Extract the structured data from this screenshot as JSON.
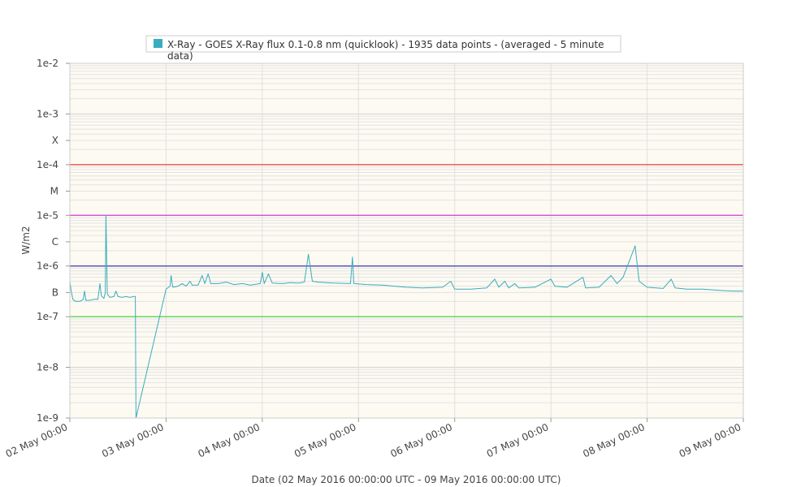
{
  "chart_data": {
    "type": "line",
    "title": "",
    "xlabel": "Date (02 May 2016 00:00:00 UTC - 09 May 2016 00:00:00 UTC)",
    "ylabel": "W/m2",
    "y_scale": "log",
    "ylim": [
      1e-09,
      0.01
    ],
    "xlim": [
      "2016-05-02 00:00",
      "2016-05-09 00:00"
    ],
    "grid": true,
    "legend_placement": "top",
    "y_ticks": [
      {
        "value": 1e-09,
        "label": "1e-9"
      },
      {
        "value": 1e-08,
        "label": "1e-8"
      },
      {
        "value": 1e-07,
        "label": "1e-7"
      },
      {
        "value": 3e-07,
        "label": "B"
      },
      {
        "value": 1e-06,
        "label": "1e-6"
      },
      {
        "value": 3e-06,
        "label": "C"
      },
      {
        "value": 1e-05,
        "label": "1e-5"
      },
      {
        "value": 3e-05,
        "label": "M"
      },
      {
        "value": 0.0001,
        "label": "1e-4"
      },
      {
        "value": 0.0003,
        "label": "X"
      },
      {
        "value": 0.001,
        "label": "1e-3"
      },
      {
        "value": 0.01,
        "label": "1e-2"
      }
    ],
    "x_ticks": [
      {
        "value": "2016-05-02 00:00",
        "label": "02 May 00:00"
      },
      {
        "value": "2016-05-03 00:00",
        "label": "03 May 00:00"
      },
      {
        "value": "2016-05-04 00:00",
        "label": "04 May 00:00"
      },
      {
        "value": "2016-05-05 00:00",
        "label": "05 May 00:00"
      },
      {
        "value": "2016-05-06 00:00",
        "label": "06 May 00:00"
      },
      {
        "value": "2016-05-07 00:00",
        "label": "07 May 00:00"
      },
      {
        "value": "2016-05-08 00:00",
        "label": "08 May 00:00"
      },
      {
        "value": "2016-05-09 00:00",
        "label": "09 May 00:00"
      }
    ],
    "threshold_lines": [
      {
        "value": 0.0001,
        "color": "#e8413e"
      },
      {
        "value": 1e-05,
        "color": "#d63ad6"
      },
      {
        "value": 1e-06,
        "color": "#3a3ab0"
      },
      {
        "value": 1e-07,
        "color": "#4cd04c"
      }
    ],
    "series": [
      {
        "name": "X-Ray - GOES X-Ray flux 0.1-0.8 nm (quicklook) - 1935 data points -  (averaged - 5 minute data)",
        "color": "#3aacbe",
        "points": [
          [
            "2016-05-02 00:00",
            5e-07
          ],
          [
            "2016-05-02 00:20",
            3.2e-07
          ],
          [
            "2016-05-02 00:45",
            2.2e-07
          ],
          [
            "2016-05-02 01:30",
            2e-07
          ],
          [
            "2016-05-02 02:30",
            2e-07
          ],
          [
            "2016-05-02 03:20",
            2.2e-07
          ],
          [
            "2016-05-02 03:40",
            3.2e-07
          ],
          [
            "2016-05-02 04:00",
            2.1e-07
          ],
          [
            "2016-05-02 05:00",
            2.1e-07
          ],
          [
            "2016-05-02 06:00",
            2.2e-07
          ],
          [
            "2016-05-02 07:00",
            2.2e-07
          ],
          [
            "2016-05-02 07:30",
            4.5e-07
          ],
          [
            "2016-05-02 07:50",
            2.6e-07
          ],
          [
            "2016-05-02 08:30",
            2.3e-07
          ],
          [
            "2016-05-02 08:50",
            3e-07
          ],
          [
            "2016-05-02 09:00",
            1e-05
          ],
          [
            "2016-05-02 09:20",
            2.8e-07
          ],
          [
            "2016-05-02 10:00",
            2.4e-07
          ],
          [
            "2016-05-02 11:00",
            2.5e-07
          ],
          [
            "2016-05-02 11:30",
            3.2e-07
          ],
          [
            "2016-05-02 12:00",
            2.5e-07
          ],
          [
            "2016-05-02 13:00",
            2.4e-07
          ],
          [
            "2016-05-02 14:00",
            2.5e-07
          ],
          [
            "2016-05-02 15:00",
            2.4e-07
          ],
          [
            "2016-05-02 16:00",
            2.5e-07
          ],
          [
            "2016-05-02 16:20",
            2.5e-07
          ],
          [
            "2016-05-02 16:30",
            1e-09
          ],
          [
            "2016-05-03 00:00",
            3.5e-07
          ],
          [
            "2016-05-03 01:00",
            4e-07
          ],
          [
            "2016-05-03 01:15",
            6.5e-07
          ],
          [
            "2016-05-03 01:40",
            3.8e-07
          ],
          [
            "2016-05-03 03:00",
            4e-07
          ],
          [
            "2016-05-03 04:00",
            4.5e-07
          ],
          [
            "2016-05-03 05:00",
            4e-07
          ],
          [
            "2016-05-03 06:00",
            5e-07
          ],
          [
            "2016-05-03 06:30",
            4.2e-07
          ],
          [
            "2016-05-03 08:00",
            4.2e-07
          ],
          [
            "2016-05-03 09:00",
            6.5e-07
          ],
          [
            "2016-05-03 09:40",
            4.5e-07
          ],
          [
            "2016-05-03 10:30",
            7e-07
          ],
          [
            "2016-05-03 11:10",
            4.5e-07
          ],
          [
            "2016-05-03 13:00",
            4.5e-07
          ],
          [
            "2016-05-03 15:00",
            4.8e-07
          ],
          [
            "2016-05-03 17:00",
            4.3e-07
          ],
          [
            "2016-05-03 19:00",
            4.5e-07
          ],
          [
            "2016-05-03 21:00",
            4.2e-07
          ],
          [
            "2016-05-03 23:30",
            4.5e-07
          ],
          [
            "2016-05-04 00:00",
            7.5e-07
          ],
          [
            "2016-05-04 00:30",
            4.5e-07
          ],
          [
            "2016-05-04 01:30",
            7e-07
          ],
          [
            "2016-05-04 02:30",
            4.6e-07
          ],
          [
            "2016-05-04 05:00",
            4.5e-07
          ],
          [
            "2016-05-04 07:00",
            4.7e-07
          ],
          [
            "2016-05-04 09:00",
            4.6e-07
          ],
          [
            "2016-05-04 10:30",
            4.8e-07
          ],
          [
            "2016-05-04 11:30",
            1.7e-06
          ],
          [
            "2016-05-04 12:30",
            5e-07
          ],
          [
            "2016-05-04 14:00",
            4.8e-07
          ],
          [
            "2016-05-04 16:00",
            4.7e-07
          ],
          [
            "2016-05-04 18:00",
            4.6e-07
          ],
          [
            "2016-05-04 22:00",
            4.5e-07
          ],
          [
            "2016-05-04 22:30",
            1.5e-06
          ],
          [
            "2016-05-04 22:50",
            4.5e-07
          ],
          [
            "2016-05-05 02:00",
            4.3e-07
          ],
          [
            "2016-05-05 06:00",
            4.2e-07
          ],
          [
            "2016-05-05 09:00",
            4e-07
          ],
          [
            "2016-05-05 12:00",
            3.8e-07
          ],
          [
            "2016-05-05 16:00",
            3.7e-07
          ],
          [
            "2016-05-05 21:00",
            3.8e-07
          ],
          [
            "2016-05-05 23:00",
            5e-07
          ],
          [
            "2016-05-06 00:00",
            3.5e-07
          ],
          [
            "2016-05-06 04:00",
            3.5e-07
          ],
          [
            "2016-05-06 08:00",
            3.7e-07
          ],
          [
            "2016-05-06 10:00",
            5.5e-07
          ],
          [
            "2016-05-06 11:00",
            3.8e-07
          ],
          [
            "2016-05-06 12:30",
            5e-07
          ],
          [
            "2016-05-06 13:30",
            3.7e-07
          ],
          [
            "2016-05-06 15:00",
            4.5e-07
          ],
          [
            "2016-05-06 16:00",
            3.7e-07
          ],
          [
            "2016-05-06 20:00",
            3.8e-07
          ],
          [
            "2016-05-07 00:00",
            5.5e-07
          ],
          [
            "2016-05-07 01:00",
            4e-07
          ],
          [
            "2016-05-07 04:00",
            3.8e-07
          ],
          [
            "2016-05-07 08:00",
            6e-07
          ],
          [
            "2016-05-07 08:40",
            3.7e-07
          ],
          [
            "2016-05-07 12:00",
            3.8e-07
          ],
          [
            "2016-05-07 15:00",
            6.5e-07
          ],
          [
            "2016-05-07 16:30",
            4.5e-07
          ],
          [
            "2016-05-07 18:00",
            6e-07
          ],
          [
            "2016-05-07 21:00",
            2.5e-06
          ],
          [
            "2016-05-07 22:00",
            5e-07
          ],
          [
            "2016-05-08 00:00",
            3.8e-07
          ],
          [
            "2016-05-08 04:00",
            3.6e-07
          ],
          [
            "2016-05-08 06:00",
            5.5e-07
          ],
          [
            "2016-05-08 07:00",
            3.7e-07
          ],
          [
            "2016-05-08 10:00",
            3.5e-07
          ],
          [
            "2016-05-08 14:00",
            3.5e-07
          ],
          [
            "2016-05-08 18:00",
            3.3e-07
          ],
          [
            "2016-05-08 22:00",
            3.2e-07
          ],
          [
            "2016-05-09 00:00",
            3.2e-07
          ]
        ]
      }
    ]
  }
}
